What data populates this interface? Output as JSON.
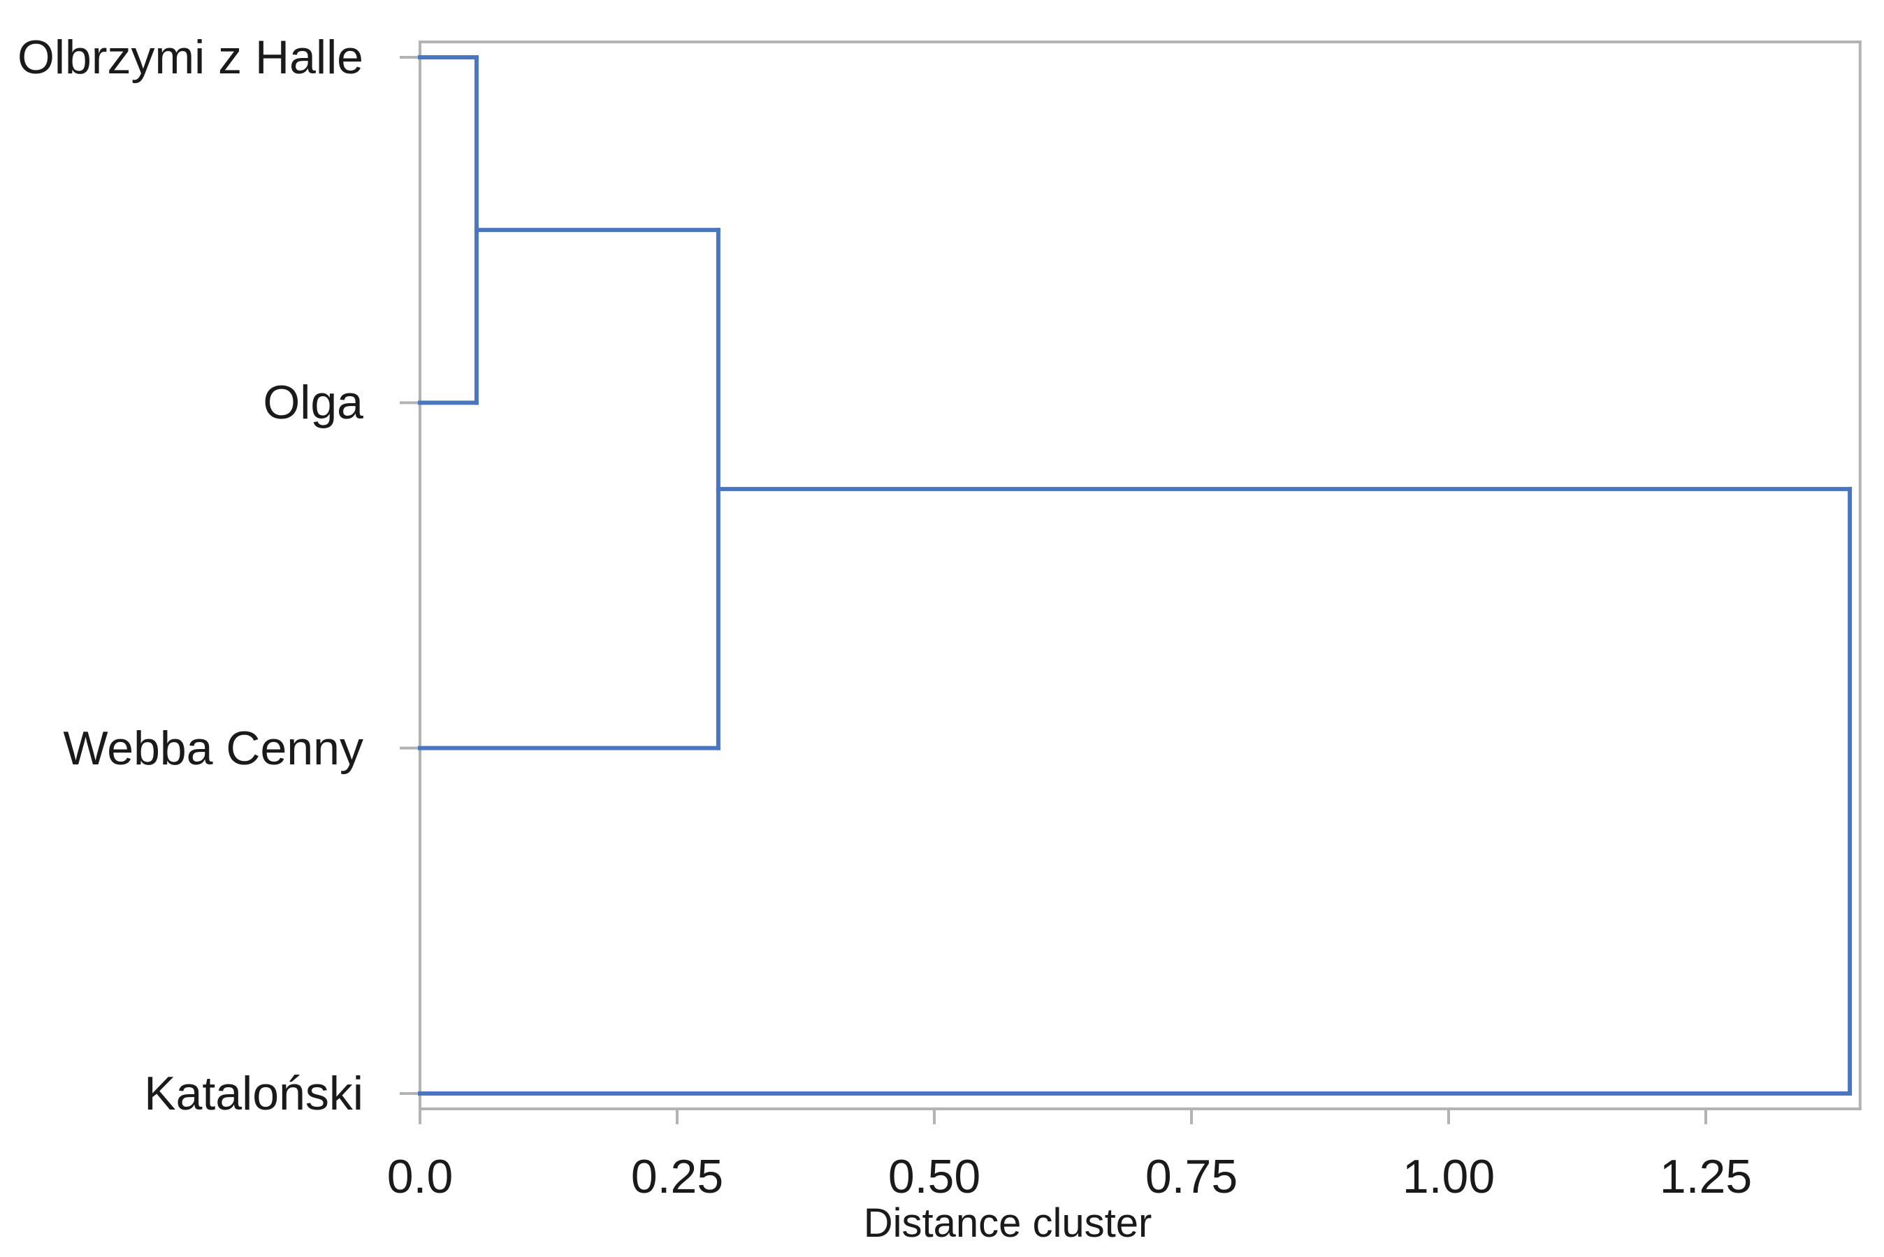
{
  "chart_data": {
    "type": "dendrogram",
    "orientation": "horizontal",
    "title": "",
    "xlabel": "Distance cluster",
    "leaves": [
      "Olbrzymi z Halle",
      "Olga",
      "Webba Cenny",
      "Kataloński"
    ],
    "linkage": [
      {
        "a": 0,
        "b": 1,
        "distance": 0.055,
        "joins": "Olbrzymi z Halle + Olga"
      },
      {
        "a": 4,
        "b": 2,
        "distance": 0.29,
        "joins": "(Olbrzymi z Halle, Olga) + Webba Cenny"
      },
      {
        "a": 5,
        "b": 3,
        "distance": 1.39,
        "joins": "(Olbrzymi z Halle, Olga, Webba Cenny) + Kataloński"
      }
    ],
    "x_ticks": [
      {
        "value": 0,
        "label": "0.0"
      },
      {
        "value": 0.25,
        "label": "0.25"
      },
      {
        "value": 0.5,
        "label": "0.50"
      },
      {
        "value": 0.75,
        "label": "0.75"
      },
      {
        "value": 1.0,
        "label": "1.00"
      },
      {
        "value": 1.25,
        "label": "1.25"
      }
    ],
    "xlim": [
      0,
      1.4
    ],
    "grid": false,
    "legend": null,
    "colors": {
      "link_line": "#4a76c0",
      "axis_line": "#b3b3b3",
      "text": "#1a1a1a"
    }
  }
}
